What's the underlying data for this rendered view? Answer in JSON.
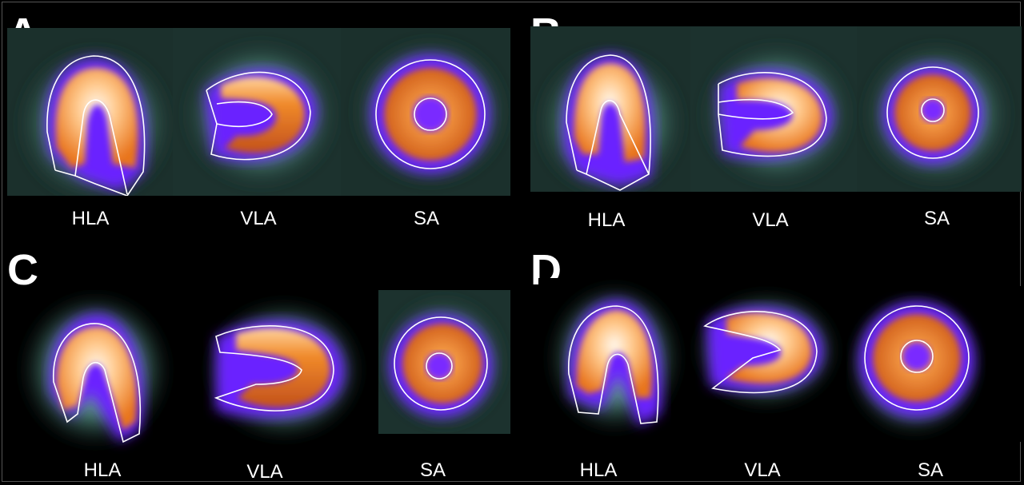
{
  "panels": [
    {
      "letter": "A",
      "labels": [
        "HLA",
        "VLA",
        "SA"
      ]
    },
    {
      "letter": "B",
      "labels": [
        "HLA",
        "VLA",
        "SA"
      ]
    },
    {
      "letter": "C",
      "labels": [
        "HLA",
        "VLA",
        "SA"
      ]
    },
    {
      "letter": "D",
      "labels": [
        "HLA",
        "VLA",
        "SA"
      ]
    }
  ],
  "colors": {
    "background": "#000000",
    "tile_background": "#1d3430",
    "halo": "#5f9e92",
    "purple": "#6a22ff",
    "orange": "#e8741c",
    "hot": "#fff6e6",
    "contour": "#ffffff"
  },
  "icons": {
    "hla": "horizontal-long-axis-slice",
    "vla": "vertical-long-axis-slice",
    "sa": "short-axis-slice"
  }
}
